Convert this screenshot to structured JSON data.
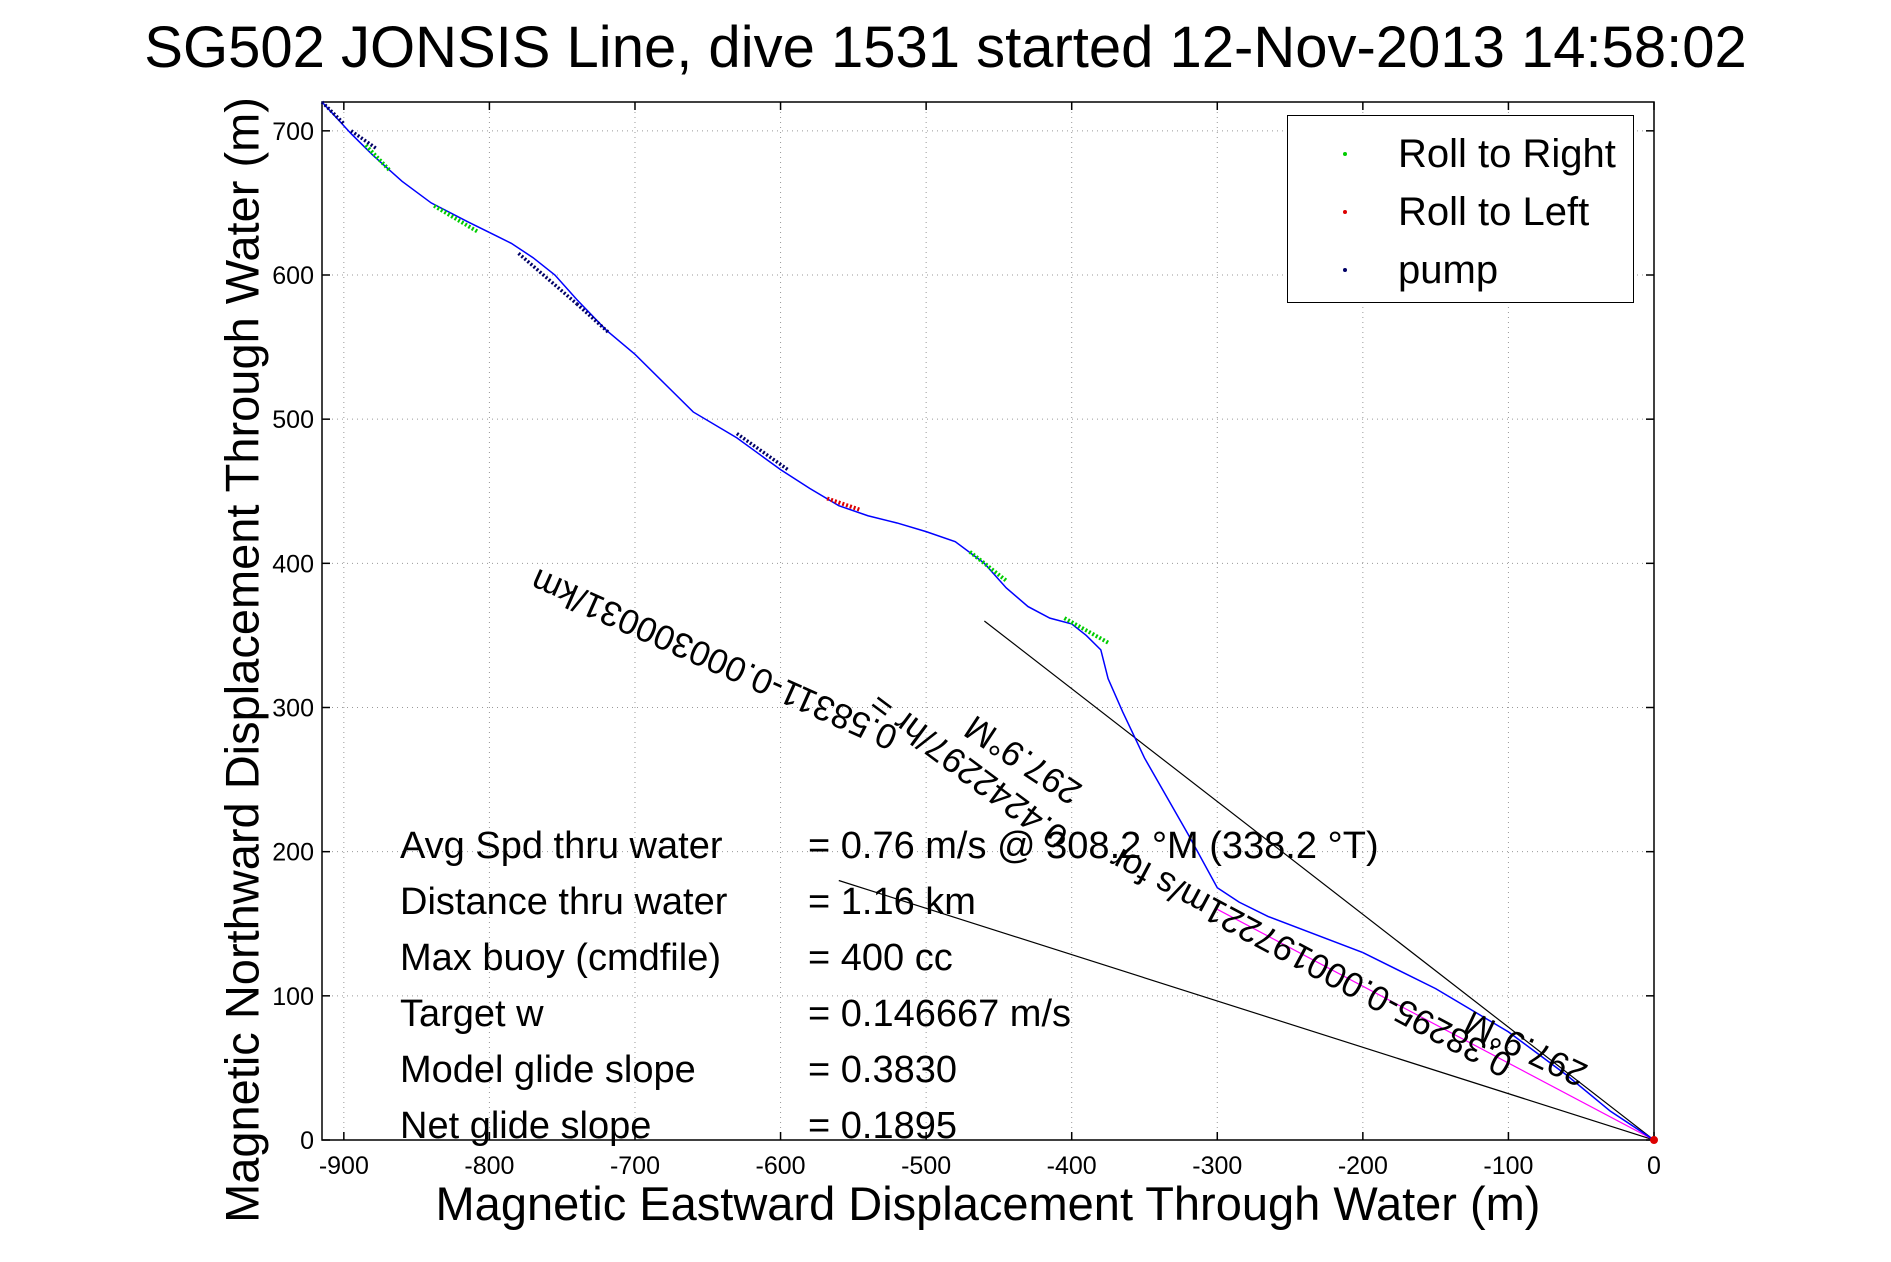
{
  "chart_data": {
    "type": "scatter",
    "title": "SG502 JONSIS Line, dive 1531 started 12-Nov-2013 14:58:02",
    "xlabel": "Magnetic Eastward Displacement Through Water (m)",
    "ylabel": "Magnetic Northward Displacement Through Water (m)",
    "xlim": [
      -915,
      0
    ],
    "ylim": [
      0,
      720
    ],
    "xticks": [
      -900,
      -800,
      -700,
      -600,
      -500,
      -400,
      -300,
      -200,
      -100,
      0
    ],
    "yticks": [
      0,
      100,
      200,
      300,
      400,
      500,
      600,
      700
    ],
    "grid": true,
    "legend_position": "top-right",
    "legend": [
      {
        "label": "Roll to Right",
        "color": "#00cc00"
      },
      {
        "label": "Roll to Left",
        "color": "#dd0000"
      },
      {
        "label": "pump",
        "color": "#000066"
      }
    ],
    "track": {
      "color": "#0000ff",
      "x": [
        -915,
        -895,
        -880,
        -860,
        -840,
        -815,
        -795,
        -785,
        -770,
        -755,
        -740,
        -720,
        -700,
        -680,
        -660,
        -630,
        -600,
        -580,
        -560,
        -540,
        -520,
        -500,
        -480,
        -460,
        -445,
        -430,
        -415,
        -400,
        -390,
        -380,
        -375,
        -365,
        -350,
        -320,
        -300,
        -285,
        -265,
        -200,
        -150,
        -100,
        -60,
        -30,
        0
      ],
      "y": [
        720,
        698,
        683,
        665,
        650,
        637,
        627,
        622,
        612,
        600,
        583,
        562,
        545,
        525,
        505,
        487,
        465,
        452,
        440,
        433,
        428,
        422,
        415,
        400,
        383,
        370,
        362,
        358,
        350,
        340,
        320,
        297,
        265,
        212,
        175,
        165,
        155,
        130,
        105,
        75,
        45,
        20,
        0
      ]
    },
    "roll_right_segments": [
      {
        "x": [
          -885,
          -868
        ],
        "y": [
          690,
          672
        ]
      },
      {
        "x": [
          -838,
          -808
        ],
        "y": [
          648,
          630
        ]
      },
      {
        "x": [
          -470,
          -445
        ],
        "y": [
          408,
          388
        ]
      },
      {
        "x": [
          -405,
          -375
        ],
        "y": [
          362,
          345
        ]
      }
    ],
    "roll_left_segments": [
      {
        "x": [
          -568,
          -545
        ],
        "y": [
          445,
          437
        ]
      }
    ],
    "pump_segments": [
      {
        "x": [
          -915,
          -900
        ],
        "y": [
          720,
          705
        ]
      },
      {
        "x": [
          -895,
          -878
        ],
        "y": [
          700,
          688
        ]
      },
      {
        "x": [
          -780,
          -740
        ],
        "y": [
          615,
          580
        ]
      },
      {
        "x": [
          -740,
          -718
        ],
        "y": [
          580,
          560
        ]
      },
      {
        "x": [
          -630,
          -595
        ],
        "y": [
          490,
          465
        ]
      }
    ],
    "reference_lines": [
      {
        "color": "#000000",
        "x": [
          -460,
          0
        ],
        "y": [
          360,
          0
        ]
      },
      {
        "color": "#000000",
        "x": [
          -560,
          0
        ],
        "y": [
          180,
          0
        ]
      },
      {
        "color": "#ff00ff",
        "x": [
          -300,
          0
        ],
        "y": [
          160,
          0
        ]
      }
    ],
    "annotations": [
      {
        "text": "0.58311-0.000300031/km",
        "x": [
          -790,
          -500
        ],
        "y": [
          400,
          270
        ]
      },
      {
        "text": "297.9°M",
        "x": [
          -470,
          -395
        ],
        "y": [
          290,
          240
        ]
      },
      {
        "text": "0.4242297/hr =",
        "x": [
          -500,
          -440
        ],
        "y": [
          280,
          235
        ]
      },
      {
        "text": "0.38295-0.000197221m/s for",
        "x": [
          -430,
          -40
        ],
        "y": [
          230,
          20
        ]
      },
      {
        "text": "297.9°M",
        "x": [
          -150,
          -25
        ],
        "y": [
          95,
          35
        ]
      }
    ],
    "stats": [
      {
        "label": "Avg Spd thru water",
        "value": "=  0.76 m/s @ 308.2 °M (338.2 °T)"
      },
      {
        "label": "Distance thru water",
        "value": "=  1.16 km"
      },
      {
        "label": "Max buoy (cmdfile)",
        "value": "= 400 cc"
      },
      {
        "label": "Target w",
        "value": "= 0.146667 m/s"
      },
      {
        "label": "Model glide slope",
        "value": "= 0.3830"
      },
      {
        "label": "Net glide slope",
        "value": "= 0.1895"
      }
    ]
  }
}
